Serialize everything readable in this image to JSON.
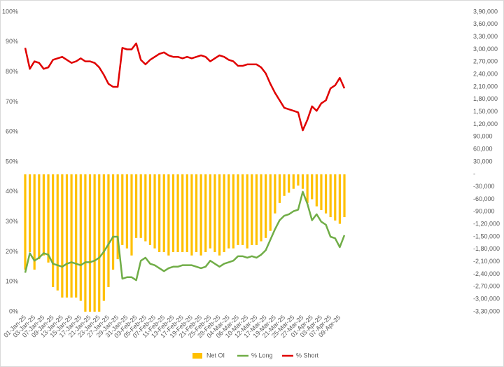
{
  "chart_data": {
    "type": "bar-line",
    "categories": [
      "01-Jan-25",
      null,
      "03-Jan-25",
      null,
      "07-Jan-25",
      null,
      "09-Jan-25",
      null,
      "13-Jan-25",
      null,
      "15-Jan-25",
      null,
      "17-Jan-25",
      null,
      "21-Jan-25",
      null,
      "23-Jan-25",
      null,
      "27-Jan-25",
      null,
      "29-Jan-25",
      null,
      "31-Jan-25",
      null,
      "03-Feb-25",
      null,
      "05-Feb-25",
      null,
      "07-Feb-25",
      null,
      "11-Feb-25",
      null,
      "13-Feb-25",
      null,
      "17-Feb-25",
      null,
      "19-Feb-25",
      null,
      "21-Feb-25",
      null,
      "25-Feb-25",
      null,
      "28-Feb-25",
      null,
      "04-Mar-25",
      null,
      "06-Mar-25",
      null,
      "10-Mar-25",
      null,
      "12-Mar-25",
      null,
      "17-Mar-25",
      null,
      "19-Mar-25",
      null,
      "21-Mar-25",
      null,
      "25-Mar-25",
      null,
      "27-Mar-25",
      null,
      "01-Apr-25",
      null,
      "03-Apr-25",
      null,
      "07-Apr-25",
      null,
      "09-Apr-25",
      null
    ],
    "series": [
      {
        "name": "Net OI",
        "type": "bar",
        "axis": "y2",
        "color": "#ffc000",
        "values": [
          -229000,
          -187000,
          -229000,
          -204000,
          -195000,
          -212000,
          -271000,
          -279000,
          -296000,
          -296000,
          -296000,
          -296000,
          -304000,
          -330000,
          -330000,
          -330000,
          -330000,
          -304000,
          -271000,
          -229000,
          -204000,
          -170000,
          -178000,
          -195000,
          -153000,
          -153000,
          -161000,
          -170000,
          -178000,
          -187000,
          -187000,
          -195000,
          -187000,
          -187000,
          -187000,
          -187000,
          -195000,
          -187000,
          -195000,
          -187000,
          -178000,
          -187000,
          -195000,
          -187000,
          -178000,
          -178000,
          -170000,
          -170000,
          -178000,
          -170000,
          -170000,
          -161000,
          -153000,
          -136000,
          -94000,
          -69000,
          -52000,
          -44000,
          -35000,
          -27000,
          -35000,
          -69000,
          -60000,
          -77000,
          -86000,
          -94000,
          -103000,
          -111000,
          -119000,
          -103000
        ]
      },
      {
        "name": "% Long",
        "type": "line",
        "color": "#70ad47",
        "values": [
          13,
          19.5,
          17,
          18,
          19.5,
          19,
          16,
          15.5,
          15,
          16,
          16.5,
          16,
          15.5,
          16.5,
          16.5,
          17,
          18,
          20,
          22.5,
          25,
          25,
          11,
          11.5,
          11.5,
          10.5,
          17,
          18,
          16,
          15.5,
          14.5,
          13.5,
          14.5,
          15,
          15,
          15.5,
          15.5,
          15.5,
          15,
          14.5,
          15,
          17,
          16,
          15,
          16,
          16.5,
          17,
          18.5,
          18.5,
          18,
          18.5,
          18,
          19,
          20.5,
          24,
          27.5,
          30.5,
          32,
          32.5,
          33.5,
          34,
          40,
          36,
          30.5,
          32.5,
          30,
          29,
          25,
          24.5,
          21.5,
          25.5
        ]
      },
      {
        "name": "% Short",
        "type": "line",
        "color": "#e00000",
        "values": [
          88,
          81,
          83.5,
          83,
          81,
          81.5,
          84,
          84.5,
          85,
          84,
          83,
          83.5,
          84.5,
          83.5,
          83.5,
          83,
          81.5,
          79,
          76,
          75,
          75,
          88,
          87.5,
          87.5,
          89.5,
          84,
          82.5,
          84,
          85,
          86,
          86.5,
          85.5,
          85,
          85,
          84.5,
          85,
          84.5,
          85,
          85.5,
          85,
          83.5,
          84.5,
          85.5,
          85,
          84,
          83.5,
          82,
          82,
          82.5,
          82.5,
          82.5,
          81.5,
          79.5,
          76,
          73,
          70.5,
          68,
          67.5,
          67,
          66.5,
          60.5,
          64,
          68.5,
          67,
          69.5,
          70.5,
          74.5,
          75.5,
          78,
          74.5
        ]
      }
    ],
    "ylim": [
      0,
      100
    ],
    "yticks": [
      {
        "value": 0,
        "label": "0%"
      },
      {
        "value": 10,
        "label": "10%"
      },
      {
        "value": 20,
        "label": "20%"
      },
      {
        "value": 30,
        "label": "30%"
      },
      {
        "value": 40,
        "label": "40%"
      },
      {
        "value": 50,
        "label": "50%"
      },
      {
        "value": 60,
        "label": "60%"
      },
      {
        "value": 70,
        "label": "70%"
      },
      {
        "value": 80,
        "label": "80%"
      },
      {
        "value": 90,
        "label": "90%"
      },
      {
        "value": 100,
        "label": "100%"
      }
    ],
    "y2lim": [
      -330000,
      390000
    ],
    "y2ticks": [
      {
        "value": 390000,
        "label": "3,90,000"
      },
      {
        "value": 360000,
        "label": "3,60,000"
      },
      {
        "value": 330000,
        "label": "3,30,000"
      },
      {
        "value": 300000,
        "label": "3,00,000"
      },
      {
        "value": 270000,
        "label": "2,70,000"
      },
      {
        "value": 240000,
        "label": "2,40,000"
      },
      {
        "value": 210000,
        "label": "2,10,000"
      },
      {
        "value": 180000,
        "label": "1,80,000"
      },
      {
        "value": 150000,
        "label": "1,50,000"
      },
      {
        "value": 120000,
        "label": "1,20,000"
      },
      {
        "value": 90000,
        "label": "90,000"
      },
      {
        "value": 60000,
        "label": "60,000"
      },
      {
        "value": 30000,
        "label": "30,000"
      },
      {
        "value": 0,
        "label": "-"
      },
      {
        "value": -30000,
        "label": "-30,000"
      },
      {
        "value": -60000,
        "label": "-60,000"
      },
      {
        "value": -90000,
        "label": "-90,000"
      },
      {
        "value": -120000,
        "label": "-1,20,000"
      },
      {
        "value": -150000,
        "label": "-1,50,000"
      },
      {
        "value": -180000,
        "label": "-1,80,000"
      },
      {
        "value": -210000,
        "label": "-2,10,000"
      },
      {
        "value": -240000,
        "label": "-2,40,000"
      },
      {
        "value": -270000,
        "label": "-2,70,000"
      },
      {
        "value": -300000,
        "label": "-3,00,000"
      },
      {
        "value": -330000,
        "label": "-3,30,000"
      }
    ],
    "grid": false,
    "legend": "bottom"
  }
}
